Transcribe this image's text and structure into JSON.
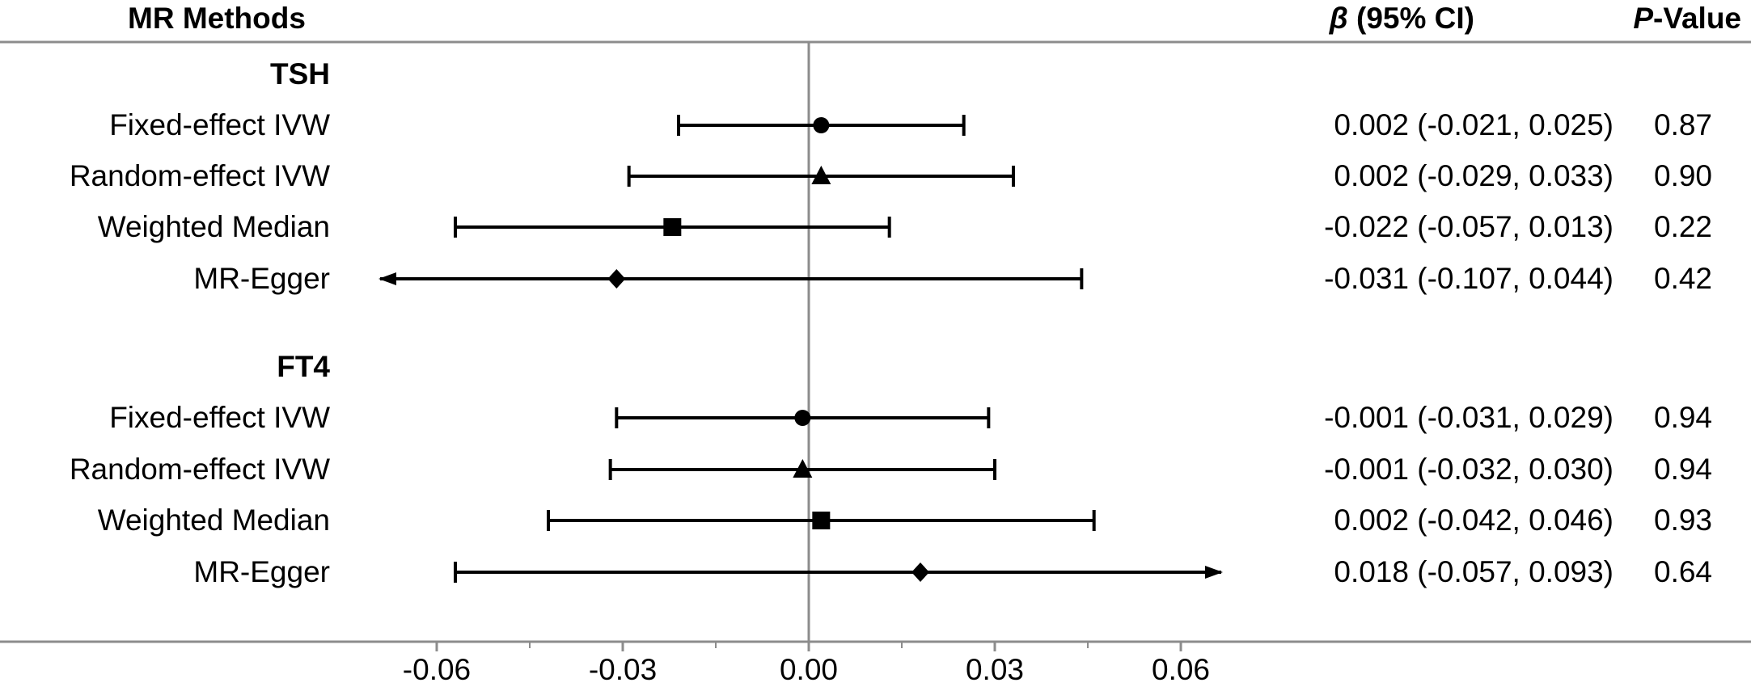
{
  "headers": {
    "methods": "MR Methods",
    "beta_prefix": "β",
    "beta_suffix": " (95% CI)",
    "p_prefix": "P",
    "p_suffix": "-Value"
  },
  "chart_data": {
    "type": "forest",
    "xlim": [
      -0.06,
      0.06
    ],
    "x_ticks": [
      "-0.06",
      "-0.03",
      "0.00",
      "0.03",
      "0.06"
    ],
    "x_tick_values": [
      -0.06,
      -0.03,
      0.0,
      0.03,
      0.06
    ],
    "reference_line": 0,
    "groups": [
      {
        "name": "TSH",
        "rows": [
          {
            "method": "Fixed-effect IVW",
            "marker": "circle",
            "beta": 0.002,
            "lower": -0.021,
            "upper": 0.025,
            "ci_text": "0.002 (-0.021, 0.025)",
            "p_text": "0.87"
          },
          {
            "method": "Random-effect IVW",
            "marker": "triangle",
            "beta": 0.002,
            "lower": -0.029,
            "upper": 0.033,
            "ci_text": "0.002 (-0.029, 0.033)",
            "p_text": "0.90"
          },
          {
            "method": "Weighted Median",
            "marker": "square",
            "beta": -0.022,
            "lower": -0.057,
            "upper": 0.013,
            "ci_text": "-0.022 (-0.057, 0.013)",
            "p_text": "0.22"
          },
          {
            "method": "MR-Egger",
            "marker": "diamond",
            "beta": -0.031,
            "lower": -0.107,
            "upper": 0.044,
            "ci_text": "-0.031 (-0.107, 0.044)",
            "p_text": "0.42"
          }
        ]
      },
      {
        "name": "FT4",
        "rows": [
          {
            "method": "Fixed-effect IVW",
            "marker": "circle",
            "beta": -0.001,
            "lower": -0.031,
            "upper": 0.029,
            "ci_text": "-0.001 (-0.031, 0.029)",
            "p_text": "0.94"
          },
          {
            "method": "Random-effect IVW",
            "marker": "triangle",
            "beta": -0.001,
            "lower": -0.032,
            "upper": 0.03,
            "ci_text": "-0.001 (-0.032, 0.030)",
            "p_text": "0.94"
          },
          {
            "method": "Weighted Median",
            "marker": "square",
            "beta": 0.002,
            "lower": -0.042,
            "upper": 0.046,
            "ci_text": "0.002 (-0.042, 0.046)",
            "p_text": "0.93"
          },
          {
            "method": "MR-Egger",
            "marker": "diamond",
            "beta": 0.018,
            "lower": -0.057,
            "upper": 0.093,
            "ci_text": "0.018 (-0.057, 0.093)",
            "p_text": "0.64"
          }
        ]
      }
    ]
  }
}
